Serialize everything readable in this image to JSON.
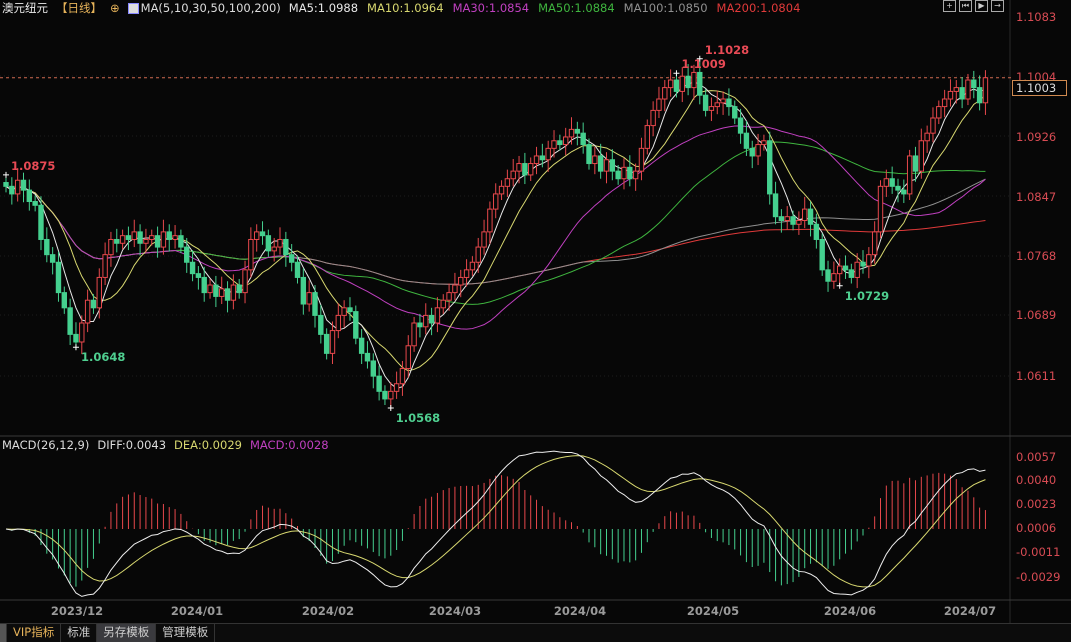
{
  "header": {
    "symbol": "澳元纽元",
    "period": "【日线】",
    "ma_label": "MA(5,10,30,50,100,200)",
    "ma_values": [
      {
        "label": "MA5:1.0988",
        "color": "#e8e8e8"
      },
      {
        "label": "MA10:1.0964",
        "color": "#d8d870"
      },
      {
        "label": "MA30:1.0854",
        "color": "#c040c0"
      },
      {
        "label": "MA50:1.0884",
        "color": "#3fb53f"
      },
      {
        "label": "MA100:1.0850",
        "color": "#909090"
      },
      {
        "label": "MA200:1.0804",
        "color": "#e03a3a"
      }
    ],
    "tool_icons": [
      "crosshair-icon",
      "first-bar-icon",
      "play-icon",
      "exit-icon"
    ]
  },
  "price_axis": {
    "ticks": [
      "1.1083",
      "1.1004",
      "1.0926",
      "1.0847",
      "1.0768",
      "1.0689",
      "1.0611"
    ],
    "last_price": "1.1003"
  },
  "macd": {
    "label": "MACD(26,12,9)",
    "diff": "DIFF:0.0043",
    "dea": "DEA:0.0029",
    "macd": "MACD:0.0028",
    "ticks": [
      "0.0057",
      "0.0040",
      "0.0023",
      "0.0006",
      "-0.0011",
      "-0.0029"
    ]
  },
  "dates": [
    "2023/12",
    "2024/01",
    "2024/02",
    "2024/03",
    "2024/04",
    "2024/05",
    "2024/06",
    "2024/07"
  ],
  "tabs": [
    "VIP指标",
    "标准",
    "另存模板",
    "管理模板"
  ],
  "colors": {
    "up": "#e8484c",
    "down": "#45d08f",
    "ma5": "#e8e8e8",
    "ma10": "#d8d870",
    "ma30": "#c040c0",
    "ma50": "#3fb53f",
    "ma100": "#909090",
    "ma200": "#e03a3a"
  },
  "chart_data": {
    "type": "candlestick",
    "ylim": [
      1.0555,
      1.1083
    ],
    "annotations": [
      {
        "text": "1.0875",
        "kind": "high"
      },
      {
        "text": "1.0648",
        "kind": "low"
      },
      {
        "text": "1.0568",
        "kind": "low"
      },
      {
        "text": "1.1028",
        "kind": "high"
      },
      {
        "text": "1.0729",
        "kind": "low"
      },
      {
        "text": "1.1009",
        "kind": "high"
      }
    ],
    "close": [
      1.086,
      1.085,
      1.0868,
      1.0855,
      1.084,
      1.0835,
      1.079,
      1.077,
      1.076,
      1.072,
      1.07,
      1.0665,
      1.0655,
      1.068,
      1.071,
      1.07,
      1.074,
      1.077,
      1.079,
      1.0785,
      1.0795,
      1.079,
      1.08,
      1.0785,
      1.079,
      1.0795,
      1.078,
      1.08,
      1.079,
      1.0795,
      1.078,
      1.076,
      1.0745,
      1.074,
      1.072,
      1.073,
      1.0715,
      1.0725,
      1.071,
      1.073,
      1.072,
      1.075,
      1.079,
      1.08,
      1.0795,
      1.0775,
      1.078,
      1.079,
      1.077,
      1.076,
      1.074,
      1.0705,
      1.072,
      1.069,
      1.0665,
      1.064,
      1.067,
      1.069,
      1.07,
      1.0695,
      1.066,
      1.064,
      1.063,
      1.061,
      1.059,
      1.058,
      1.059,
      1.06,
      1.062,
      1.065,
      1.068,
      1.0675,
      1.069,
      1.068,
      1.07,
      1.071,
      1.072,
      1.073,
      1.074,
      1.075,
      1.076,
      1.078,
      1.08,
      1.083,
      1.085,
      1.086,
      1.087,
      1.088,
      1.089,
      1.0875,
      1.089,
      1.09,
      1.0895,
      1.091,
      1.092,
      1.0915,
      1.0925,
      1.0935,
      1.093,
      1.0915,
      1.089,
      1.09,
      1.088,
      1.0895,
      1.088,
      1.087,
      1.0885,
      1.087,
      1.088,
      1.091,
      1.094,
      1.096,
      1.0975,
      1.099,
      1.1,
      1.0985,
      1.1005,
      1.099,
      1.101,
      1.098,
      1.096,
      1.0965,
      1.097,
      1.0975,
      1.0965,
      1.095,
      1.093,
      1.091,
      1.09,
      1.0915,
      1.092,
      1.085,
      1.082,
      1.0815,
      1.082,
      1.081,
      1.0815,
      1.083,
      1.081,
      1.079,
      1.075,
      1.0735,
      1.0745,
      1.0755,
      1.075,
      1.074,
      1.076,
      1.0755,
      1.077,
      1.08,
      1.086,
      1.087,
      1.086,
      1.0855,
      1.085,
      1.09,
      1.088,
      1.092,
      1.093,
      1.095,
      1.0965,
      1.0975,
      1.0985,
      1.099,
      1.0975,
      1.1,
      1.099,
      1.097,
      1.1003
    ]
  }
}
